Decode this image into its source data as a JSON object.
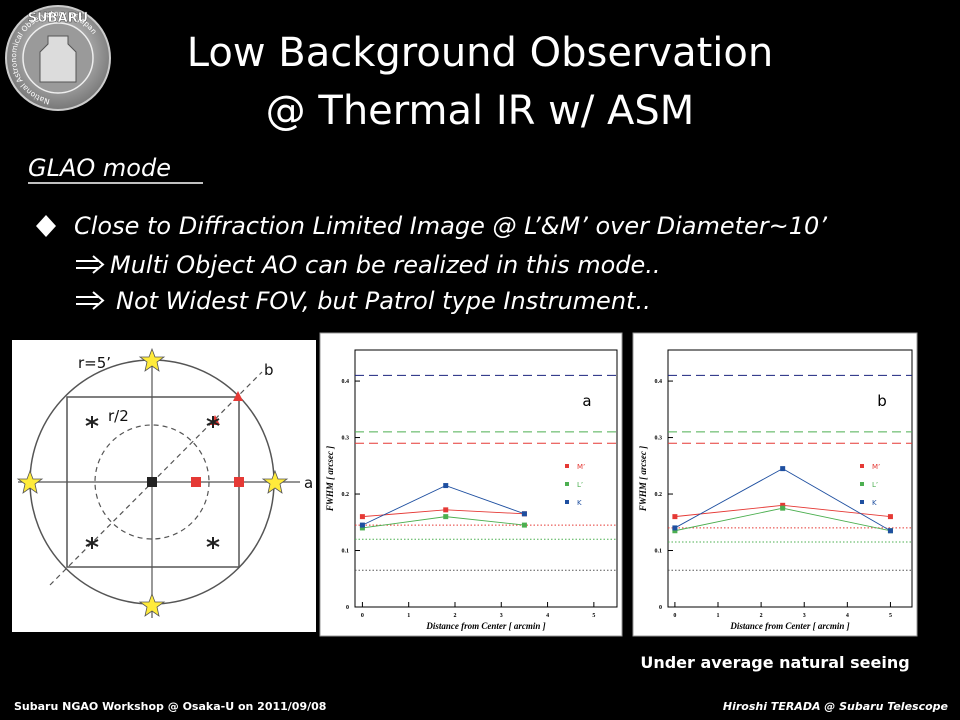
{
  "logo": {
    "name": "SUBARU",
    "ring": "National Astronomical Observatory of Japan"
  },
  "title": [
    "Low Background Observation",
    "@ Thermal IR w/ ASM"
  ],
  "section": "GLAO mode",
  "bullets": [
    "Close to Diffraction Limited Image @ L’&M’ over Diameter~10’",
    "Multi Object AO can be realized in this mode..",
    "Not Widest FOV, but Patrol type Instrument.."
  ],
  "diagram": {
    "radius_label": "r=5’",
    "half_label": "r/2",
    "axis_a": "a",
    "axis_b": "b"
  },
  "caption": "Under average natural seeing",
  "footer": {
    "left": "Subaru NGAO Workshop @ Osaka-U on 2011/09/08",
    "right": "Hiroshi TERADA @ Subaru Telescope"
  },
  "chart_data": [
    {
      "type": "line",
      "label": "a",
      "xlabel": "Distance from Center [ arcmin ]",
      "ylabel": "FWHM [ arcsec ]",
      "x": [
        0,
        1.8,
        3.5
      ],
      "xlim": [
        -0.16,
        5.5
      ],
      "ylim": [
        0,
        0.455
      ],
      "xticks": [
        0,
        1,
        2,
        3,
        4,
        5
      ],
      "yticks": [
        0,
        0.1,
        0.2,
        0.3,
        0.4
      ],
      "series": [
        {
          "name": "M’",
          "color": "#e53935",
          "values": [
            0.16,
            0.172,
            0.165
          ]
        },
        {
          "name": "L’",
          "color": "#4caf50",
          "values": [
            0.14,
            0.16,
            0.145
          ]
        },
        {
          "name": "K",
          "color": "#1e4fa0",
          "values": [
            0.145,
            0.215,
            0.165
          ]
        }
      ],
      "hlines": [
        {
          "value": 0.41,
          "color": "#1a237e",
          "style": "dashed"
        },
        {
          "value": 0.31,
          "color": "#4caf50",
          "style": "dashed"
        },
        {
          "value": 0.29,
          "color": "#e53935",
          "style": "dashed"
        },
        {
          "value": 0.145,
          "color": "#e53935",
          "style": "dotted"
        },
        {
          "value": 0.12,
          "color": "#4caf50",
          "style": "dotted"
        },
        {
          "value": 0.065,
          "color": "#555555",
          "style": "dotted"
        }
      ]
    },
    {
      "type": "line",
      "label": "b",
      "xlabel": "Distance from Center [ arcmin ]",
      "ylabel": "FWHM [ arcsec ]",
      "x": [
        0,
        2.5,
        5
      ],
      "xlim": [
        -0.16,
        5.5
      ],
      "ylim": [
        0,
        0.455
      ],
      "xticks": [
        0,
        1,
        2,
        3,
        4,
        5
      ],
      "yticks": [
        0,
        0.1,
        0.2,
        0.3,
        0.4
      ],
      "series": [
        {
          "name": "M’",
          "color": "#e53935",
          "values": [
            0.16,
            0.18,
            0.16
          ]
        },
        {
          "name": "L’",
          "color": "#4caf50",
          "values": [
            0.135,
            0.175,
            0.135
          ]
        },
        {
          "name": "K",
          "color": "#1e4fa0",
          "values": [
            0.14,
            0.245,
            0.135
          ]
        }
      ],
      "hlines": [
        {
          "value": 0.41,
          "color": "#1a237e",
          "style": "dashed"
        },
        {
          "value": 0.31,
          "color": "#4caf50",
          "style": "dashed"
        },
        {
          "value": 0.29,
          "color": "#e53935",
          "style": "dashed"
        },
        {
          "value": 0.14,
          "color": "#e53935",
          "style": "dotted"
        },
        {
          "value": 0.115,
          "color": "#4caf50",
          "style": "dotted"
        },
        {
          "value": 0.065,
          "color": "#555555",
          "style": "dotted"
        }
      ]
    }
  ]
}
